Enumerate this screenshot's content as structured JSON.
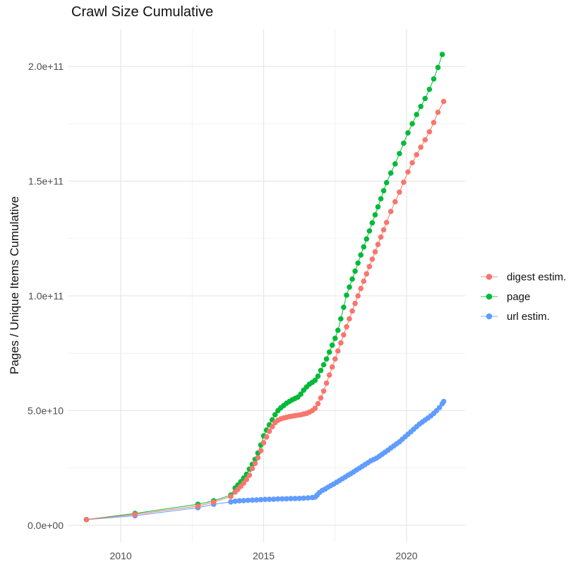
{
  "chart_data": {
    "type": "scatter",
    "title": "Crawl Size Cumulative",
    "xlabel": "",
    "ylabel": "Pages / Unique Items Cumulative",
    "y_unit": "1e9",
    "x_axis": {
      "range": [
        2008.17,
        2022.05
      ],
      "ticks": [
        {
          "v": 2010,
          "label": "2010"
        },
        {
          "v": 2015,
          "label": "2015"
        },
        {
          "v": 2020,
          "label": "2020"
        }
      ],
      "minor": [
        2012.5,
        2017.5
      ]
    },
    "y_axis": {
      "range": [
        -7.4,
        216.3
      ],
      "ticks": [
        {
          "v": 0,
          "label": "0.0e+00"
        },
        {
          "v": 50,
          "label": "5.0e+10"
        },
        {
          "v": 100,
          "label": "1.0e+11"
        },
        {
          "v": 150,
          "label": "1.5e+11"
        },
        {
          "v": 200,
          "label": "2.0e+11"
        }
      ],
      "minor": [
        25,
        75,
        125,
        175
      ]
    },
    "grid": {
      "major_color": "#e6e6e6",
      "minor_color": "#efefef"
    },
    "legend": {
      "position": "right",
      "entries": [
        "digest estim.",
        "page",
        "url estim."
      ]
    },
    "series": [
      {
        "name": "digest estim.",
        "color": "#F8766D",
        "draw_rank": 2,
        "points": [
          [
            2008.8,
            2.5
          ],
          [
            2010.5,
            4.8
          ],
          [
            2012.7,
            8.4
          ],
          [
            2013.25,
            10.1
          ],
          [
            2013.85,
            12.6
          ],
          [
            2014.0,
            14.5
          ],
          [
            2014.1,
            15.7
          ],
          [
            2014.2,
            17.0
          ],
          [
            2014.3,
            18.4
          ],
          [
            2014.4,
            20.0
          ],
          [
            2014.5,
            21.8
          ],
          [
            2014.6,
            24.8
          ],
          [
            2014.7,
            27.0
          ],
          [
            2014.8,
            29.5
          ],
          [
            2014.9,
            32.5
          ],
          [
            2015.0,
            36.0
          ],
          [
            2015.1,
            38.5
          ],
          [
            2015.2,
            41.0
          ],
          [
            2015.3,
            43.0
          ],
          [
            2015.4,
            44.8
          ],
          [
            2015.5,
            45.8
          ],
          [
            2015.6,
            46.4
          ],
          [
            2015.7,
            46.8
          ],
          [
            2015.8,
            47.1
          ],
          [
            2015.9,
            47.4
          ],
          [
            2016.0,
            47.6
          ],
          [
            2016.1,
            47.8
          ],
          [
            2016.2,
            48.0
          ],
          [
            2016.3,
            48.2
          ],
          [
            2016.4,
            48.5
          ],
          [
            2016.5,
            48.8
          ],
          [
            2016.6,
            49.3
          ],
          [
            2016.7,
            50.0
          ],
          [
            2016.8,
            51.0
          ],
          [
            2016.9,
            53.0
          ],
          [
            2017.0,
            55.5
          ],
          [
            2017.1,
            58.5
          ],
          [
            2017.2,
            62.0
          ],
          [
            2017.3,
            65.5
          ],
          [
            2017.4,
            69.0
          ],
          [
            2017.5,
            72.5
          ],
          [
            2017.6,
            76.0
          ],
          [
            2017.7,
            79.5
          ],
          [
            2017.8,
            83.0
          ],
          [
            2017.9,
            86.5
          ],
          [
            2018.0,
            90.0
          ],
          [
            2018.1,
            93.4
          ],
          [
            2018.2,
            96.7
          ],
          [
            2018.3,
            100.0
          ],
          [
            2018.4,
            103.2
          ],
          [
            2018.5,
            106.4
          ],
          [
            2018.6,
            109.6
          ],
          [
            2018.7,
            112.8
          ],
          [
            2018.8,
            116.0
          ],
          [
            2018.9,
            119.2
          ],
          [
            2019.0,
            122.4
          ],
          [
            2019.1,
            125.6
          ],
          [
            2019.2,
            128.8
          ],
          [
            2019.3,
            132.0
          ],
          [
            2019.45,
            136.8
          ],
          [
            2019.6,
            141.0
          ],
          [
            2019.75,
            145.2
          ],
          [
            2019.9,
            149.5
          ],
          [
            2020.05,
            154.0
          ],
          [
            2020.2,
            158.0
          ],
          [
            2020.35,
            161.5
          ],
          [
            2020.5,
            164.8
          ],
          [
            2020.65,
            168.0
          ],
          [
            2020.8,
            171.5
          ],
          [
            2020.95,
            175.5
          ],
          [
            2021.1,
            180.0
          ],
          [
            2021.3,
            184.7
          ]
        ]
      },
      {
        "name": "page",
        "color": "#00BA38",
        "draw_rank": 1,
        "points": [
          [
            2008.8,
            2.5
          ],
          [
            2010.5,
            5.2
          ],
          [
            2012.7,
            9.2
          ],
          [
            2013.25,
            10.7
          ],
          [
            2013.85,
            13.2
          ],
          [
            2014.0,
            16.3
          ],
          [
            2014.1,
            17.6
          ],
          [
            2014.2,
            19.0
          ],
          [
            2014.3,
            20.6
          ],
          [
            2014.4,
            22.3
          ],
          [
            2014.5,
            24.5
          ],
          [
            2014.6,
            26.6
          ],
          [
            2014.7,
            28.8
          ],
          [
            2014.8,
            31.5
          ],
          [
            2014.9,
            35.0
          ],
          [
            2015.0,
            39.0
          ],
          [
            2015.1,
            41.5
          ],
          [
            2015.2,
            43.8
          ],
          [
            2015.3,
            46.0
          ],
          [
            2015.4,
            48.2
          ],
          [
            2015.5,
            50.0
          ],
          [
            2015.6,
            51.2
          ],
          [
            2015.7,
            52.2
          ],
          [
            2015.8,
            53.2
          ],
          [
            2015.9,
            54.0
          ],
          [
            2016.0,
            54.7
          ],
          [
            2016.1,
            55.3
          ],
          [
            2016.2,
            55.9
          ],
          [
            2016.3,
            57.2
          ],
          [
            2016.4,
            58.9
          ],
          [
            2016.5,
            60.3
          ],
          [
            2016.6,
            61.5
          ],
          [
            2016.7,
            62.3
          ],
          [
            2016.8,
            63.2
          ],
          [
            2016.9,
            65.0
          ],
          [
            2017.0,
            67.5
          ],
          [
            2017.1,
            70.0
          ],
          [
            2017.2,
            72.5
          ],
          [
            2017.3,
            75.5
          ],
          [
            2017.4,
            78.5
          ],
          [
            2017.5,
            81.5
          ],
          [
            2017.6,
            85.0
          ],
          [
            2017.7,
            90.0
          ],
          [
            2017.8,
            95.0
          ],
          [
            2017.9,
            100.3
          ],
          [
            2018.0,
            103.8
          ],
          [
            2018.1,
            107.3
          ],
          [
            2018.2,
            110.8
          ],
          [
            2018.3,
            114.3
          ],
          [
            2018.4,
            117.8
          ],
          [
            2018.5,
            121.3
          ],
          [
            2018.6,
            124.8
          ],
          [
            2018.7,
            128.3
          ],
          [
            2018.8,
            131.8
          ],
          [
            2018.9,
            135.3
          ],
          [
            2019.0,
            138.8
          ],
          [
            2019.1,
            142.3
          ],
          [
            2019.2,
            145.8
          ],
          [
            2019.3,
            149.3
          ],
          [
            2019.45,
            153.5
          ],
          [
            2019.6,
            157.5
          ],
          [
            2019.75,
            162.0
          ],
          [
            2019.9,
            166.5
          ],
          [
            2020.05,
            171.0
          ],
          [
            2020.2,
            175.0
          ],
          [
            2020.35,
            179.0
          ],
          [
            2020.5,
            182.5
          ],
          [
            2020.65,
            186.0
          ],
          [
            2020.8,
            190.0
          ],
          [
            2020.95,
            194.5
          ],
          [
            2021.1,
            199.5
          ],
          [
            2021.25,
            205.2
          ]
        ]
      },
      {
        "name": "url estim.",
        "color": "#619CFF",
        "draw_rank": 0,
        "points": [
          [
            2008.8,
            2.5
          ],
          [
            2010.5,
            4.2
          ],
          [
            2012.7,
            7.7
          ],
          [
            2013.25,
            9.2
          ],
          [
            2013.85,
            10.2
          ],
          [
            2014.0,
            10.5
          ],
          [
            2014.15,
            10.7
          ],
          [
            2014.3,
            10.8
          ],
          [
            2014.45,
            10.9
          ],
          [
            2014.6,
            11.0
          ],
          [
            2014.75,
            11.1
          ],
          [
            2014.9,
            11.2
          ],
          [
            2015.05,
            11.3
          ],
          [
            2015.2,
            11.35
          ],
          [
            2015.35,
            11.4
          ],
          [
            2015.5,
            11.5
          ],
          [
            2015.65,
            11.55
          ],
          [
            2015.8,
            11.6
          ],
          [
            2015.95,
            11.65
          ],
          [
            2016.1,
            11.7
          ],
          [
            2016.25,
            11.75
          ],
          [
            2016.4,
            11.85
          ],
          [
            2016.55,
            11.95
          ],
          [
            2016.7,
            12.1
          ],
          [
            2016.8,
            12.3
          ],
          [
            2016.87,
            13.2
          ],
          [
            2016.95,
            14.3
          ],
          [
            2017.05,
            15.2
          ],
          [
            2017.15,
            15.8
          ],
          [
            2017.25,
            16.6
          ],
          [
            2017.35,
            17.3
          ],
          [
            2017.45,
            18.0
          ],
          [
            2017.55,
            18.8
          ],
          [
            2017.65,
            19.5
          ],
          [
            2017.75,
            20.3
          ],
          [
            2017.85,
            21.0
          ],
          [
            2017.95,
            21.8
          ],
          [
            2018.05,
            22.5
          ],
          [
            2018.15,
            23.3
          ],
          [
            2018.25,
            24.1
          ],
          [
            2018.35,
            24.9
          ],
          [
            2018.45,
            25.7
          ],
          [
            2018.55,
            26.5
          ],
          [
            2018.65,
            27.3
          ],
          [
            2018.75,
            28.1
          ],
          [
            2018.85,
            28.7
          ],
          [
            2018.95,
            29.3
          ],
          [
            2019.05,
            30.1
          ],
          [
            2019.15,
            31.0
          ],
          [
            2019.25,
            31.9
          ],
          [
            2019.35,
            32.8
          ],
          [
            2019.45,
            33.7
          ],
          [
            2019.55,
            34.6
          ],
          [
            2019.65,
            35.5
          ],
          [
            2019.75,
            36.4
          ],
          [
            2019.85,
            37.5
          ],
          [
            2019.95,
            38.6
          ],
          [
            2020.05,
            39.7
          ],
          [
            2020.15,
            40.8
          ],
          [
            2020.25,
            41.9
          ],
          [
            2020.35,
            43.0
          ],
          [
            2020.45,
            44.1
          ],
          [
            2020.55,
            45.0
          ],
          [
            2020.65,
            45.9
          ],
          [
            2020.75,
            46.8
          ],
          [
            2020.85,
            47.7
          ],
          [
            2020.95,
            48.8
          ],
          [
            2021.05,
            50.0
          ],
          [
            2021.15,
            51.3
          ],
          [
            2021.25,
            53.0
          ],
          [
            2021.3,
            54.0
          ]
        ]
      }
    ]
  }
}
